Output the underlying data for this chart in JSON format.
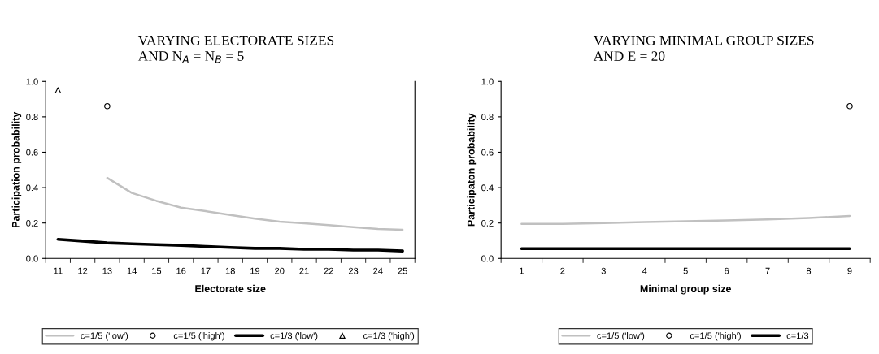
{
  "chart_data": [
    {
      "type": "line",
      "title": "VARYING ELECTORATE SIZES\nAND N$_{A}$ = N$_{B}$ = 5",
      "xlabel": "Electorate size",
      "ylabel": "Participation probability",
      "categories": [
        "11",
        "12",
        "13",
        "14",
        "15",
        "16",
        "17",
        "18",
        "19",
        "20",
        "21",
        "22",
        "23",
        "24",
        "25"
      ],
      "ylim": [
        0,
        1
      ],
      "yticks": [
        {
          "value": 0,
          "label": "0.0"
        },
        {
          "value": 0.2,
          "label": "0.2"
        },
        {
          "value": 0.4,
          "label": "0.4"
        },
        {
          "value": 0.6,
          "label": "0.6"
        },
        {
          "value": 0.8,
          "label": "0.8"
        },
        {
          "value": 1,
          "label": "1.0"
        }
      ],
      "grid": false,
      "legend": "bottom",
      "series": [
        {
          "name": "c=1/5 ('low')",
          "color": "#c0c0c0",
          "marker": "none",
          "values": [
            null,
            null,
            0.455,
            0.37,
            0.325,
            0.287,
            0.267,
            0.246,
            0.225,
            0.208,
            0.198,
            0.188,
            0.177,
            0.166,
            0.162
          ]
        },
        {
          "name": "c=1/5 ('high')",
          "type": "scatter",
          "color": "#000000",
          "marker": "circle",
          "values": [
            null,
            null,
            0.86,
            null,
            null,
            null,
            null,
            null,
            null,
            null,
            null,
            null,
            null,
            null,
            null
          ]
        },
        {
          "name": "c=1/3 ('low')",
          "color": "#000000",
          "marker": "none",
          "values": [
            0.108,
            0.098,
            0.088,
            0.083,
            0.078,
            0.074,
            0.068,
            0.062,
            0.057,
            0.057,
            0.052,
            0.052,
            0.047,
            0.047,
            0.042
          ]
        },
        {
          "name": "c=1/3 ('high')",
          "type": "scatter",
          "color": "#000000",
          "marker": "triangle",
          "values": [
            0.95,
            null,
            null,
            null,
            null,
            null,
            null,
            null,
            null,
            null,
            null,
            null,
            null,
            null,
            null
          ]
        }
      ]
    },
    {
      "type": "line",
      "title": "VARYING MINIMAL GROUP SIZES\nAND E = 20",
      "xlabel": "Minimal group size",
      "ylabel": "Participaton probability",
      "categories": [
        "1",
        "2",
        "3",
        "4",
        "5",
        "6",
        "7",
        "8",
        "9"
      ],
      "ylim": [
        0,
        1
      ],
      "yticks": [
        {
          "value": 0,
          "label": "0.0"
        },
        {
          "value": 0.2,
          "label": "0.2"
        },
        {
          "value": 0.4,
          "label": "0.4"
        },
        {
          "value": 0.6,
          "label": "0.6"
        },
        {
          "value": 0.8,
          "label": "0.8"
        },
        {
          "value": 1,
          "label": "1.0"
        }
      ],
      "grid": false,
      "legend": "bottom",
      "series": [
        {
          "name": "c=1/5 ('low')",
          "color": "#c0c0c0",
          "marker": "none",
          "values": [
            0.195,
            0.195,
            0.2,
            0.205,
            0.21,
            0.215,
            0.22,
            0.228,
            0.24
          ]
        },
        {
          "name": "c=1/5 ('high')",
          "type": "scatter",
          "color": "#000000",
          "marker": "circle",
          "values": [
            null,
            null,
            null,
            null,
            null,
            null,
            null,
            null,
            0.86
          ]
        },
        {
          "name": "c=1/3",
          "color": "#000000",
          "marker": "none",
          "values": [
            0.055,
            0.055,
            0.055,
            0.055,
            0.055,
            0.055,
            0.055,
            0.055,
            0.055
          ]
        }
      ]
    }
  ]
}
